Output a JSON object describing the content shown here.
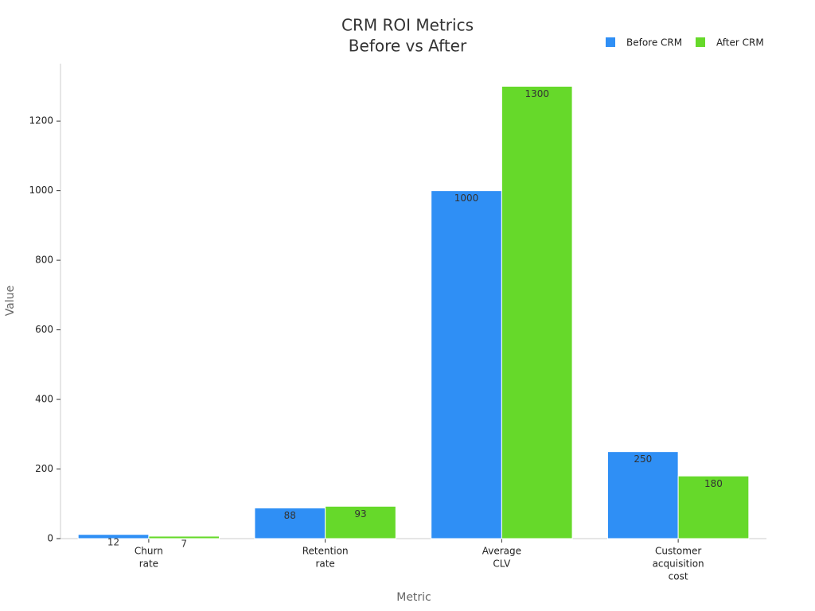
{
  "chart_data": {
    "type": "bar",
    "title": [
      "CRM ROI Metrics",
      "Before vs After"
    ],
    "x_label": "Metric",
    "y_label": "Value",
    "categories": [
      [
        "Churn",
        "rate"
      ],
      [
        "Retention",
        "rate"
      ],
      [
        "Average",
        "CLV"
      ],
      [
        "Customer",
        "acquisition",
        "cost"
      ]
    ],
    "series": [
      {
        "name": "Before CRM",
        "color": "#2f8ff5",
        "values": [
          12,
          88,
          1000,
          250
        ]
      },
      {
        "name": "After CRM",
        "color": "#66d92a",
        "values": [
          7,
          93,
          1300,
          180
        ]
      }
    ],
    "ylim": [
      0,
      1365
    ],
    "yticks": [
      0,
      200,
      400,
      600,
      800,
      1000,
      1200
    ],
    "legend": "top-right"
  }
}
